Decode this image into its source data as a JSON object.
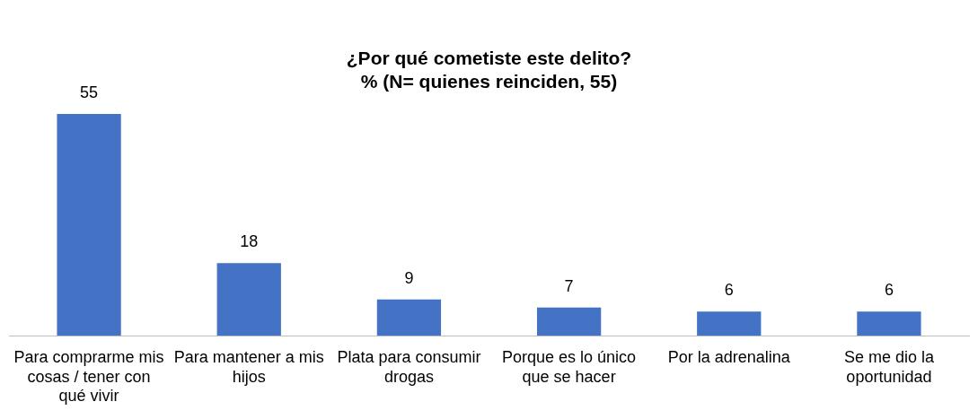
{
  "chart_data": {
    "type": "bar",
    "title": "¿Por qué cometiste este delito?",
    "subtitle": "% (N= quienes reinciden, 55)",
    "categories": [
      "Para comprarme mis cosas / tener con qué vivir",
      "Para mantener a mis hijos",
      "Plata para consumir drogas",
      "Porque es lo único que se hacer",
      "Por la adrenalina",
      "Se me dio la oportunidad"
    ],
    "values": [
      55,
      18,
      9,
      7,
      6,
      6
    ],
    "color": "#4472c4",
    "data_labels": true,
    "grid": false,
    "legend": false
  }
}
